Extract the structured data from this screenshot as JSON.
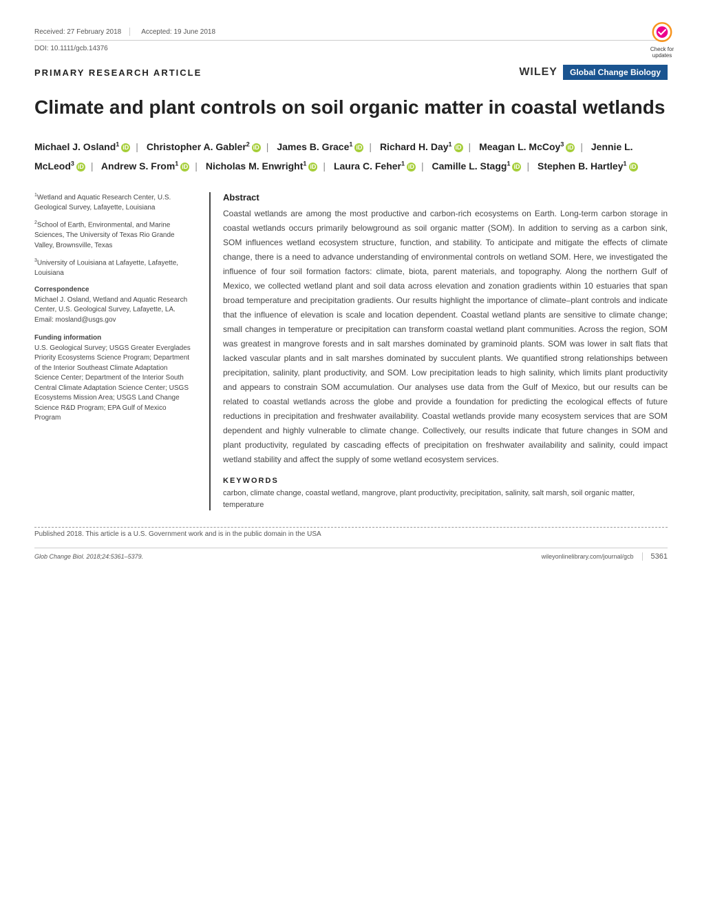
{
  "header": {
    "received_label": "Received: 27 February 2018",
    "accepted_label": "Accepted: 19 June 2018",
    "doi": "DOI: 10.1111/gcb.14376",
    "article_type": "PRIMARY RESEARCH ARTICLE",
    "publisher": "WILEY",
    "journal_badge": "Global Change Biology",
    "check_updates_line1": "Check for",
    "check_updates_line2": "updates"
  },
  "title": "Climate and plant controls on soil organic matter in coastal wetlands",
  "authors": [
    {
      "name": "Michael J. Osland",
      "sup": "1",
      "orcid": true
    },
    {
      "name": "Christopher A. Gabler",
      "sup": "2",
      "orcid": true
    },
    {
      "name": "James B. Grace",
      "sup": "1",
      "orcid": true
    },
    {
      "name": "Richard H. Day",
      "sup": "1",
      "orcid": true
    },
    {
      "name": "Meagan L. McCoy",
      "sup": "3",
      "orcid": true
    },
    {
      "name": "Jennie L. McLeod",
      "sup": "3",
      "orcid": true
    },
    {
      "name": "Andrew S. From",
      "sup": "1",
      "orcid": true
    },
    {
      "name": "Nicholas M. Enwright",
      "sup": "1",
      "orcid": true
    },
    {
      "name": "Laura C. Feher",
      "sup": "1",
      "orcid": true
    },
    {
      "name": "Camille L. Stagg",
      "sup": "1",
      "orcid": true
    },
    {
      "name": "Stephen B. Hartley",
      "sup": "1",
      "orcid": true
    }
  ],
  "affiliations": {
    "a1": "Wetland and Aquatic Research Center, U.S. Geological Survey, Lafayette, Louisiana",
    "a2": "School of Earth, Environmental, and Marine Sciences, The University of Texas Rio Grande Valley, Brownsville, Texas",
    "a3": "University of Louisiana at Lafayette, Lafayette, Louisiana"
  },
  "correspondence": {
    "title": "Correspondence",
    "body": "Michael J. Osland, Wetland and Aquatic Research Center, U.S. Geological Survey, Lafayette, LA.",
    "email_label": "Email: mosland@usgs.gov"
  },
  "funding": {
    "title": "Funding information",
    "body": "U.S. Geological Survey; USGS Greater Everglades Priority Ecosystems Science Program; Department of the Interior Southeast Climate Adaptation Science Center; Department of the Interior South Central Climate Adaptation Science Center; USGS Ecosystems Mission Area; USGS Land Change Science R&D Program; EPA Gulf of Mexico Program"
  },
  "abstract": {
    "title": "Abstract",
    "body": "Coastal wetlands are among the most productive and carbon-rich ecosystems on Earth. Long-term carbon storage in coastal wetlands occurs primarily belowground as soil organic matter (SOM). In addition to serving as a carbon sink, SOM influences wetland ecosystem structure, function, and stability. To anticipate and mitigate the effects of climate change, there is a need to advance understanding of environmental controls on wetland SOM. Here, we investigated the influence of four soil formation factors: climate, biota, parent materials, and topography. Along the northern Gulf of Mexico, we collected wetland plant and soil data across elevation and zonation gradients within 10 estuaries that span broad temperature and precipitation gradients. Our results highlight the importance of climate–plant controls and indicate that the influence of elevation is scale and location dependent. Coastal wetland plants are sensitive to climate change; small changes in temperature or precipitation can transform coastal wetland plant communities. Across the region, SOM was greatest in mangrove forests and in salt marshes dominated by graminoid plants. SOM was lower in salt flats that lacked vascular plants and in salt marshes dominated by succulent plants. We quantified strong relationships between precipitation, salinity, plant productivity, and SOM. Low precipitation leads to high salinity, which limits plant productivity and appears to constrain SOM accumulation. Our analyses use data from the Gulf of Mexico, but our results can be related to coastal wetlands across the globe and provide a foundation for predicting the ecological effects of future reductions in precipitation and freshwater availability. Coastal wetlands provide many ecosystem services that are SOM dependent and highly vulnerable to climate change. Collectively, our results indicate that future changes in SOM and plant productivity, regulated by cascading effects of precipitation on freshwater availability and salinity, could impact wetland stability and affect the supply of some wetland ecosystem services."
  },
  "keywords": {
    "title": "KEYWORDS",
    "body": "carbon, climate change, coastal wetland, mangrove, plant productivity, precipitation, salinity, salt marsh, soil organic matter, temperature"
  },
  "pubnote": "Published 2018. This article is a U.S. Government work and is in the public domain in the USA",
  "footer": {
    "citation": "Glob Change Biol. 2018;24:5361–5379.",
    "url": "wileyonlinelibrary.com/journal/gcb",
    "page": "5361"
  },
  "colors": {
    "badge_bg": "#1a5490",
    "orcid_bg": "#a6ce39",
    "text": "#333333",
    "light_text": "#555555"
  }
}
